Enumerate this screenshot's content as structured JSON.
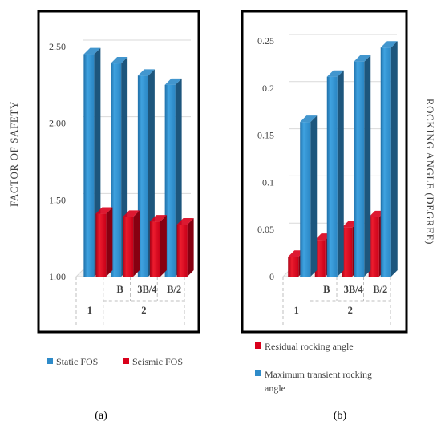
{
  "chart_data": [
    {
      "type": "bar",
      "panel_label": "(a)",
      "ylabel": "FACTOR OF SAFETY",
      "ylim": [
        1.0,
        2.5
      ],
      "yticks": [
        "1.00",
        "1.50",
        "2.00",
        "2.50"
      ],
      "yticks_values": [
        1.0,
        1.5,
        2.0,
        2.5
      ],
      "grid": true,
      "categories_level1": [
        "",
        "B",
        "3B/4",
        "B/2"
      ],
      "categories_level2": [
        {
          "label": "1",
          "span": 1
        },
        {
          "label": "2",
          "span": 3
        }
      ],
      "series": [
        {
          "name": "Static FOS",
          "color": "#2e8bc9",
          "values": [
            2.45,
            2.39,
            2.31,
            2.25
          ]
        },
        {
          "name": "Seismic FOS",
          "color": "#d9001b",
          "values": [
            1.41,
            1.39,
            1.36,
            1.34
          ]
        }
      ],
      "legend": "bottom"
    },
    {
      "type": "bar",
      "panel_label": "(b)",
      "ylabel": "ROCKING ANGLE (DEGREE)",
      "ylim": [
        0,
        0.25
      ],
      "yticks": [
        "0",
        "0.05",
        "0.1",
        "0.15",
        "0.2",
        "0.25"
      ],
      "yticks_values": [
        0,
        0.05,
        0.1,
        0.15,
        0.2,
        0.25
      ],
      "grid": true,
      "categories_level1": [
        "",
        "B",
        "3B/4",
        "B/2"
      ],
      "categories_level2": [
        {
          "label": "1",
          "span": 1
        },
        {
          "label": "2",
          "span": 3
        }
      ],
      "series": [
        {
          "name": "Residual rocking angle",
          "color": "#d9001b",
          "values": [
            0.021,
            0.039,
            0.052,
            0.063
          ]
        },
        {
          "name": "Maximum transient rocking angle",
          "color": "#2e8bc9",
          "values": [
            0.164,
            0.212,
            0.228,
            0.243
          ]
        }
      ],
      "legend": "bottom"
    }
  ]
}
